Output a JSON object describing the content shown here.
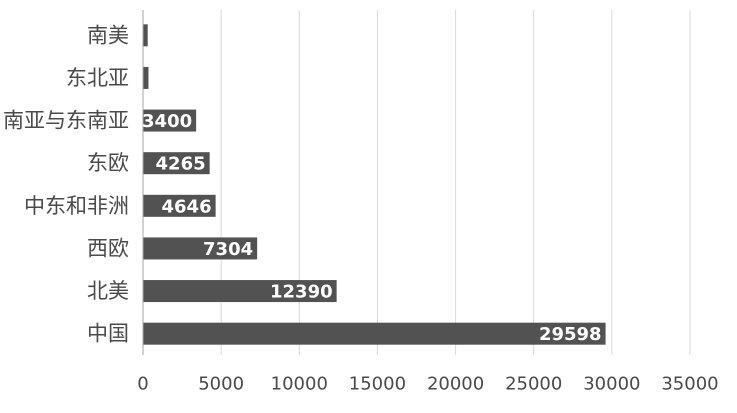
{
  "chart_data": {
    "type": "bar",
    "orientation": "horizontal",
    "categories": [
      "中国",
      "北美",
      "西欧",
      "中东和非洲",
      "东欧",
      "南亚与东南亚",
      "东北亚",
      "南美"
    ],
    "values": [
      29598,
      12390,
      7304,
      4646,
      4265,
      3400,
      350,
      300
    ],
    "data_labels": [
      "29598",
      "12390",
      "7304",
      "4646",
      "4265",
      "3400",
      "",
      ""
    ],
    "xlim": [
      0,
      35000
    ],
    "xticks": [
      0,
      5000,
      10000,
      15000,
      20000,
      25000,
      30000,
      35000
    ],
    "xtick_labels": [
      "0",
      "5000",
      "10000",
      "15000",
      "20000",
      "25000",
      "30000",
      "35000"
    ],
    "grid": "vertical",
    "legend": "none",
    "title": "",
    "xlabel": "",
    "ylabel": "",
    "colors": {
      "bar": "#525252",
      "grid": "#d9d9d9",
      "axis": "#a6a6a6"
    }
  }
}
